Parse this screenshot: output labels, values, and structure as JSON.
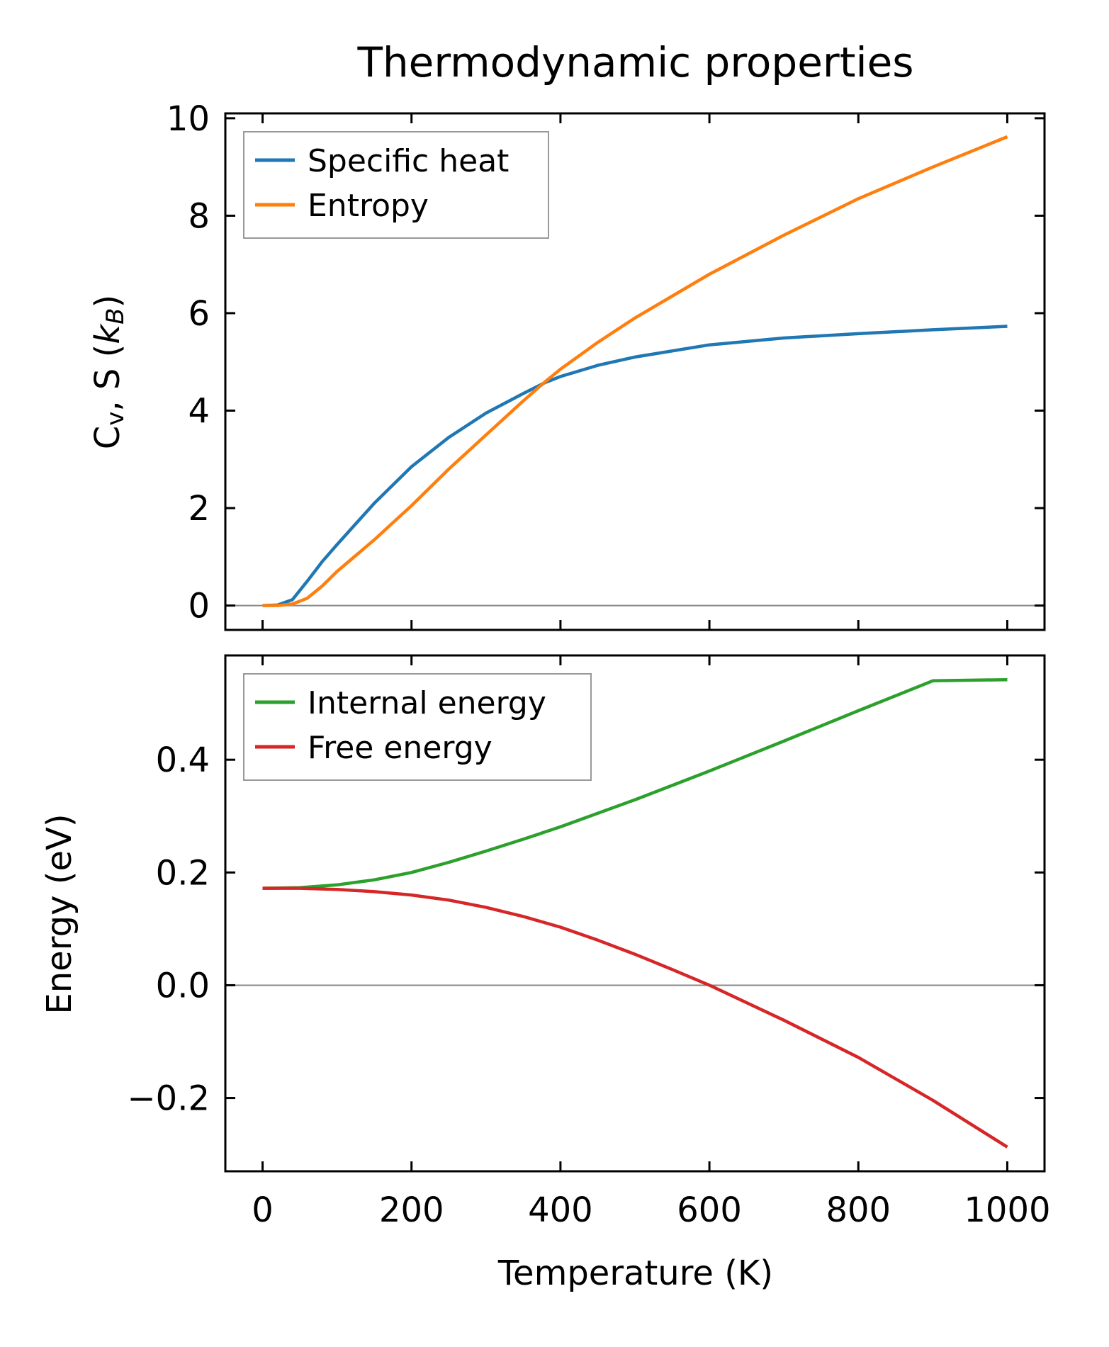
{
  "chart_data": [
    {
      "type": "line",
      "title": "Thermodynamic properties",
      "xlabel": "",
      "ylabel": "C_v, S (k_B)",
      "ylabel_parts": {
        "main": "C",
        "sub": "v",
        "mid": ", S (",
        "k": "k",
        "ksub": "B",
        "end": ")"
      },
      "xlim": [
        -50,
        1050
      ],
      "ylim": [
        -0.5,
        10.1
      ],
      "xticks": [
        0,
        200,
        400,
        600,
        800,
        1000
      ],
      "xtick_labels_visible": false,
      "yticks": [
        0,
        2,
        4,
        6,
        8,
        10
      ],
      "ytick_labels": [
        "0",
        "2",
        "4",
        "6",
        "8",
        "10"
      ],
      "zero_line": true,
      "grid": false,
      "legend_position": "top-left",
      "series": [
        {
          "name": "Specific heat",
          "color": "#1f77b4",
          "x": [
            0,
            20,
            40,
            60,
            80,
            100,
            150,
            200,
            250,
            300,
            350,
            380,
            400,
            450,
            500,
            600,
            700,
            800,
            900,
            1000
          ],
          "y": [
            0,
            0.01,
            0.12,
            0.5,
            0.9,
            1.25,
            2.1,
            2.85,
            3.45,
            3.95,
            4.35,
            4.58,
            4.7,
            4.93,
            5.1,
            5.35,
            5.49,
            5.58,
            5.66,
            5.73
          ]
        },
        {
          "name": "Entropy",
          "color": "#ff7f0e",
          "x": [
            0,
            20,
            40,
            60,
            80,
            100,
            150,
            200,
            250,
            300,
            350,
            380,
            400,
            450,
            500,
            600,
            700,
            800,
            900,
            1000
          ],
          "y": [
            0,
            0.0,
            0.03,
            0.15,
            0.4,
            0.7,
            1.35,
            2.05,
            2.8,
            3.5,
            4.2,
            4.6,
            4.85,
            5.4,
            5.9,
            6.8,
            7.6,
            8.35,
            9.0,
            9.62
          ]
        }
      ]
    },
    {
      "type": "line",
      "title": "",
      "xlabel": "Temperature (K)",
      "ylabel": "Energy (eV)",
      "xlim": [
        -50,
        1050
      ],
      "ylim": [
        -0.33,
        0.585
      ],
      "xticks": [
        0,
        200,
        400,
        600,
        800,
        1000
      ],
      "xtick_labels": [
        "0",
        "200",
        "400",
        "600",
        "800",
        "1000"
      ],
      "yticks": [
        -0.2,
        0.0,
        0.2,
        0.4
      ],
      "ytick_labels": [
        "−0.2",
        "0.0",
        "0.2",
        "0.4"
      ],
      "zero_line": true,
      "grid": false,
      "legend_position": "top-left",
      "series": [
        {
          "name": "Internal energy",
          "color": "#2ca02c",
          "x": [
            0,
            50,
            100,
            150,
            200,
            250,
            300,
            350,
            400,
            500,
            600,
            700,
            800,
            900,
            1000
          ],
          "y": [
            0.172,
            0.173,
            0.178,
            0.187,
            0.2,
            0.218,
            0.238,
            0.259,
            0.281,
            0.329,
            0.38,
            0.433,
            0.487,
            0.54,
            0.542
          ]
        },
        {
          "name": "Free energy",
          "color": "#d62728",
          "x": [
            0,
            50,
            100,
            150,
            200,
            250,
            300,
            350,
            400,
            450,
            500,
            550,
            600,
            700,
            800,
            900,
            1000
          ],
          "y": [
            0.172,
            0.172,
            0.17,
            0.166,
            0.16,
            0.151,
            0.138,
            0.122,
            0.103,
            0.08,
            0.055,
            0.028,
            0.0,
            -0.062,
            -0.128,
            -0.204,
            -0.287
          ]
        }
      ]
    }
  ]
}
